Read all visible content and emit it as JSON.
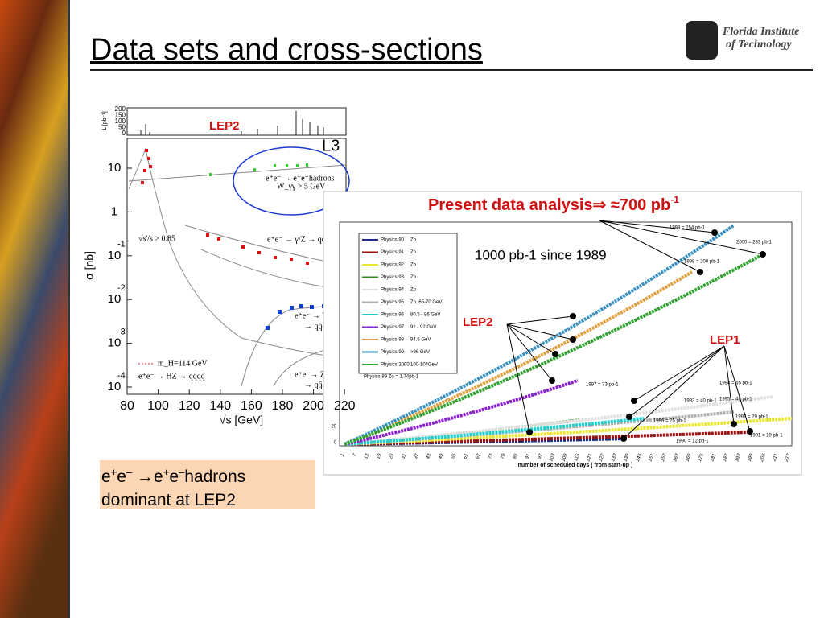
{
  "header": {
    "title": "Data sets and cross-sections",
    "logo": [
      "Florida Institute",
      "of Technology"
    ]
  },
  "left_plot": {
    "lep2": "LEP2",
    "experiment": "L3",
    "y_axis_label": "σ [nb]",
    "x_axis_label": "√s [GeV]",
    "xticks": [
      "80",
      "100",
      "120",
      "140",
      "160",
      "180",
      "200",
      "220"
    ],
    "yticks": [
      {
        "base": "10"
      },
      {
        "base": "1"
      },
      {
        "base": "10",
        "exp": "-1"
      },
      {
        "base": "10",
        "exp": "-2"
      },
      {
        "base": "10",
        "exp": "-3"
      },
      {
        "base": "10",
        "exp": "-4"
      }
    ],
    "lumi_ticks": [
      "200",
      "150",
      "100",
      "50",
      "0"
    ],
    "lumi_label": "L [pb⁻¹]",
    "annotations": [
      "e⁺e⁻ → e⁺e⁻hadrons",
      "W_γγ > 5 GeV",
      "√s'/s > 0.85",
      "e⁺e⁻ → γ/Z → qq̄(γ)",
      "e⁺e⁻ → W⁺W⁻",
      "→ qq̄qq̄",
      "e⁺e⁻→ ZZ",
      "→ qq̄qq̄",
      "m_H=114 GeV",
      "e⁺e⁻ → HZ → qq̄qq̄"
    ]
  },
  "right_plot": {
    "headline": [
      {
        "text": "Present data analysis⇒ ≈700 pb"
      },
      {
        "text": "-1",
        "sup": true
      }
    ],
    "note": "1000 pb-1 since 1989",
    "lep2": "LEP2",
    "lep1": "LEP1",
    "legend": [
      {
        "name": "Physics 90",
        "detail": "Zo",
        "color": "#1a2a8a"
      },
      {
        "name": "Physics 91",
        "detail": "Zo",
        "color": "#a01010"
      },
      {
        "name": "Physics 92",
        "detail": "Zo",
        "color": "#e8e830"
      },
      {
        "name": "Physics 93",
        "detail": "Zo",
        "color": "#3a8a20"
      },
      {
        "name": "Physics 94",
        "detail": "Zo",
        "color": "#e0e0e0"
      },
      {
        "name": "Physics 95",
        "detail": "Zo, 65-70 GeV",
        "color": "#b0b0b0"
      },
      {
        "name": "Physics 96",
        "detail": "80.5 - 86 GeV",
        "color": "#20d0d0"
      },
      {
        "name": "Physics 97",
        "detail": "91 - 92 GeV",
        "color": "#8a20d0"
      },
      {
        "name": "Physics 98",
        "detail": "94.5 GeV",
        "color": "#e0a040"
      },
      {
        "name": "Physics 99",
        "detail": ">96 GeV",
        "color": "#3a90c0"
      },
      {
        "name": "Physics 2000",
        "detail": "100-104GeV",
        "color": "#30a030"
      }
    ],
    "legend_note": "Physics 89 Zo = 1.74pb-1",
    "curve_labels": [
      "1999 = 254 pb-1",
      "2000 = 233 pb-1",
      "1998 = 200 pb-1",
      "1997 = 73 pb-1",
      "1994 = 65 pb-1",
      "1995 = 46 pb-1",
      "1993 = 40 pb-1",
      "1992 = 29 pb-1",
      "1996 = 25 pb-1",
      "1991 = 19 pb-1",
      "1990 = 12 pb-1"
    ],
    "yticks": [
      "20",
      "0"
    ],
    "xticks": [
      "1",
      "7",
      "13",
      "19",
      "25",
      "31",
      "37",
      "43",
      "49",
      "55",
      "61",
      "67",
      "73",
      "79",
      "85",
      "91",
      "97",
      "103",
      "109",
      "115",
      "121",
      "127",
      "133",
      "139",
      "145",
      "151",
      "157",
      "163",
      "169",
      "175",
      "181",
      "187",
      "193",
      "199",
      "205",
      "211",
      "217"
    ],
    "x_axis_label": "number of scheduled days ( from start-up )"
  },
  "caption": [
    [
      {
        "text": "e"
      },
      {
        "text": "+",
        "sup": true
      },
      {
        "text": "e"
      },
      {
        "text": "–",
        "sup": true
      },
      {
        "text": " →e"
      },
      {
        "text": "+",
        "sup": true
      },
      {
        "text": "e"
      },
      {
        "text": "–",
        "sup": true
      },
      {
        "text": "hadrons"
      }
    ],
    [
      {
        "text": "dominant at LEP2"
      }
    ]
  ]
}
